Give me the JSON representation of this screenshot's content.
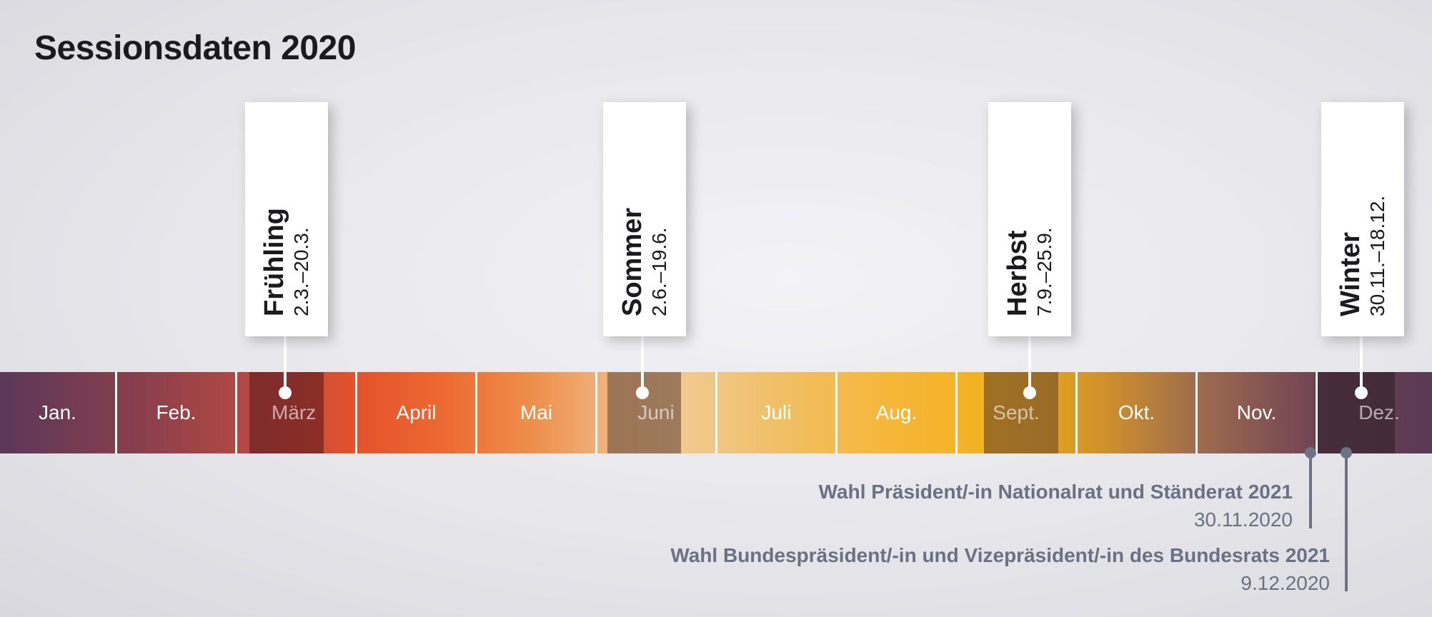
{
  "title": "Sessionsdaten 2020",
  "months": [
    "Jan.",
    "Feb.",
    "März",
    "April",
    "Mai",
    "Juni",
    "Juli",
    "Aug.",
    "Sept.",
    "Okt.",
    "Nov.",
    "Dez."
  ],
  "sessions": [
    {
      "season": "Frühling",
      "dates": "2.3.–20.3."
    },
    {
      "season": "Sommer",
      "dates": "2.6.–19.6."
    },
    {
      "season": "Herbst",
      "dates": "7.9.–25.9."
    },
    {
      "season": "Winter",
      "dates": "30.11.–18.12."
    }
  ],
  "events": [
    {
      "title": "Wahl Präsident/-in Nationalrat und Ständerat 2021",
      "date": "30.11.2020"
    },
    {
      "title": "Wahl Bundespräsident/-in und Vizepräsident/-in des Bundesrats 2021",
      "date": "9.12.2020"
    }
  ],
  "colors": {
    "session_band": "#5a2a2a",
    "card_background": "#ffffff",
    "event_text": "#6b7082",
    "month_text": "#ffffff"
  }
}
